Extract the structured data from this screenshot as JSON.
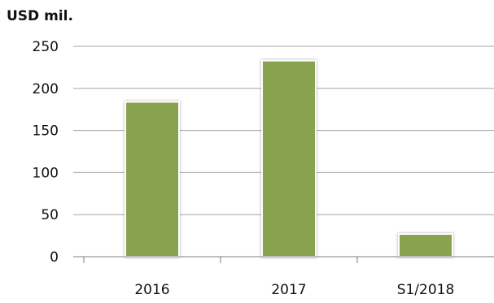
{
  "chart_data": {
    "type": "bar",
    "ylabel": "USD mil.",
    "categories": [
      "2016",
      "2017",
      "S1/2018"
    ],
    "values": [
      184,
      233,
      27
    ],
    "ylim": [
      0,
      250
    ],
    "yticks": [
      0,
      50,
      100,
      150,
      200,
      250
    ],
    "grid": true,
    "legend": "none",
    "bar_color": "#88a34f",
    "gridline_color": "#a6a6a6"
  }
}
